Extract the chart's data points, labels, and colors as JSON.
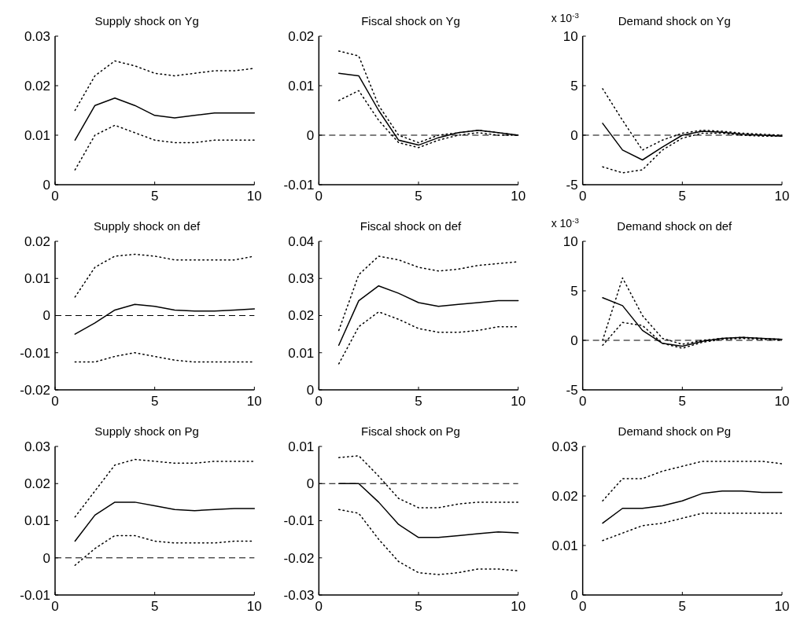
{
  "chart_data": [
    {
      "type": "line",
      "title": "Supply shock on Yg",
      "x": [
        1,
        2,
        3,
        4,
        5,
        6,
        7,
        8,
        9,
        10
      ],
      "xlim": [
        0,
        10
      ],
      "xticks": [
        0,
        5,
        10
      ],
      "ylim": [
        0,
        0.03
      ],
      "yticks": [
        0,
        0.01,
        0.02,
        0.03
      ],
      "series": [
        {
          "color": "#000000",
          "line_style": "solid",
          "values": [
            0.009,
            0.016,
            0.0175,
            0.016,
            0.014,
            0.0135,
            0.014,
            0.0145,
            0.0145,
            0.0145
          ]
        },
        {
          "color": "#000000",
          "line_style": "dotted",
          "values": [
            0.015,
            0.022,
            0.025,
            0.024,
            0.0225,
            0.022,
            0.0225,
            0.023,
            0.023,
            0.0235
          ]
        },
        {
          "color": "#000000",
          "line_style": "dotted",
          "values": [
            0.003,
            0.01,
            0.012,
            0.0105,
            0.009,
            0.0085,
            0.0085,
            0.009,
            0.009,
            0.009
          ]
        }
      ]
    },
    {
      "type": "line",
      "title": "Fiscal shock on Yg",
      "x": [
        1,
        2,
        3,
        4,
        5,
        6,
        7,
        8,
        9,
        10
      ],
      "xlim": [
        0,
        10
      ],
      "xticks": [
        0,
        5,
        10
      ],
      "ylim": [
        -0.01,
        0.02
      ],
      "yticks": [
        -0.01,
        0,
        0.01,
        0.02
      ],
      "ref_lines": [
        {
          "axis": "y",
          "value": 0,
          "line_style": "dashed"
        }
      ],
      "series": [
        {
          "color": "#000000",
          "line_style": "solid",
          "values": [
            0.0125,
            0.012,
            0.005,
            -0.001,
            -0.002,
            -0.0005,
            0.0005,
            0.001,
            0.0005,
            0
          ]
        },
        {
          "color": "#000000",
          "line_style": "dotted",
          "values": [
            0.017,
            0.016,
            0.006,
            0,
            -0.0015,
            0,
            0.0005,
            0.001,
            0.0005,
            0
          ]
        },
        {
          "color": "#000000",
          "line_style": "dotted",
          "values": [
            0.007,
            0.009,
            0.003,
            -0.0015,
            -0.0025,
            -0.001,
            0,
            0.0005,
            0,
            0
          ]
        }
      ]
    },
    {
      "type": "line",
      "title": "Demand shock on Yg",
      "annotations": [
        "x 10$^{-3}$"
      ],
      "x": [
        1,
        2,
        3,
        4,
        5,
        6,
        7,
        8,
        9,
        10
      ],
      "xlim": [
        0,
        10
      ],
      "xticks": [
        0,
        5,
        10
      ],
      "ylim": [
        -5,
        10
      ],
      "yticks": [
        -5,
        0,
        5,
        10
      ],
      "ref_lines": [
        {
          "axis": "y",
          "value": 0,
          "line_style": "dashed"
        }
      ],
      "series": [
        {
          "color": "#000000",
          "line_style": "solid",
          "values": [
            1.2,
            -1.5,
            -2.5,
            -1.2,
            0,
            0.4,
            0.3,
            0.1,
            0,
            -0.1
          ]
        },
        {
          "color": "#000000",
          "line_style": "dotted",
          "values": [
            4.7,
            1.5,
            -1.5,
            -0.5,
            0.2,
            0.5,
            0.4,
            0.2,
            0.1,
            0
          ]
        },
        {
          "color": "#000000",
          "line_style": "dotted",
          "values": [
            -3.2,
            -3.8,
            -3.5,
            -1.5,
            -0.3,
            0.2,
            0.2,
            0,
            -0.1,
            -0.1
          ]
        }
      ]
    },
    {
      "type": "line",
      "title": "Supply shock on def",
      "x": [
        1,
        2,
        3,
        4,
        5,
        6,
        7,
        8,
        9,
        10
      ],
      "xlim": [
        0,
        10
      ],
      "xticks": [
        0,
        5,
        10
      ],
      "ylim": [
        -0.02,
        0.02
      ],
      "yticks": [
        -0.02,
        -0.01,
        0,
        0.01,
        0.02
      ],
      "ref_lines": [
        {
          "axis": "y",
          "value": 0,
          "line_style": "dashed"
        }
      ],
      "series": [
        {
          "color": "#000000",
          "line_style": "solid",
          "values": [
            -0.005,
            -0.002,
            0.0015,
            0.003,
            0.0025,
            0.0015,
            0.0012,
            0.0012,
            0.0015,
            0.0018
          ]
        },
        {
          "color": "#000000",
          "line_style": "dotted",
          "values": [
            0.005,
            0.013,
            0.016,
            0.0165,
            0.016,
            0.015,
            0.015,
            0.015,
            0.015,
            0.016
          ]
        },
        {
          "color": "#000000",
          "line_style": "dotted",
          "values": [
            -0.0125,
            -0.0125,
            -0.011,
            -0.01,
            -0.011,
            -0.012,
            -0.0125,
            -0.0125,
            -0.0125,
            -0.0125
          ]
        }
      ]
    },
    {
      "type": "line",
      "title": "Fiscal shock on def",
      "x": [
        1,
        2,
        3,
        4,
        5,
        6,
        7,
        8,
        9,
        10
      ],
      "xlim": [
        0,
        10
      ],
      "xticks": [
        0,
        5,
        10
      ],
      "ylim": [
        0,
        0.04
      ],
      "yticks": [
        0,
        0.01,
        0.02,
        0.03,
        0.04
      ],
      "series": [
        {
          "color": "#000000",
          "line_style": "solid",
          "values": [
            0.012,
            0.024,
            0.028,
            0.026,
            0.0235,
            0.0225,
            0.023,
            0.0235,
            0.024,
            0.024
          ]
        },
        {
          "color": "#000000",
          "line_style": "dotted",
          "values": [
            0.016,
            0.031,
            0.036,
            0.035,
            0.033,
            0.032,
            0.0325,
            0.0335,
            0.034,
            0.0345
          ]
        },
        {
          "color": "#000000",
          "line_style": "dotted",
          "values": [
            0.007,
            0.017,
            0.021,
            0.019,
            0.0165,
            0.0155,
            0.0155,
            0.016,
            0.017,
            0.017
          ]
        }
      ]
    },
    {
      "type": "line",
      "title": "Demand shock on def",
      "annotations": [
        "x 10$^{-3}$"
      ],
      "x": [
        1,
        2,
        3,
        4,
        5,
        6,
        7,
        8,
        9,
        10
      ],
      "xlim": [
        0,
        10
      ],
      "xticks": [
        0,
        5,
        10
      ],
      "ylim": [
        -5,
        10
      ],
      "yticks": [
        -5,
        0,
        5,
        10
      ],
      "ref_lines": [
        {
          "axis": "y",
          "value": 0,
          "line_style": "dashed"
        }
      ],
      "series": [
        {
          "color": "#000000",
          "line_style": "solid",
          "values": [
            4.3,
            3.5,
            1,
            -0.3,
            -0.6,
            -0.1,
            0.2,
            0.3,
            0.2,
            0.1
          ]
        },
        {
          "color": "#000000",
          "line_style": "dotted",
          "values": [
            0,
            6.3,
            2.5,
            0.2,
            -0.4,
            0,
            0.2,
            0.3,
            0.2,
            0.1
          ]
        },
        {
          "color": "#000000",
          "line_style": "dotted",
          "values": [
            -0.5,
            1.8,
            1.5,
            -0.3,
            -0.8,
            -0.2,
            0.1,
            0.2,
            0.1,
            0
          ]
        }
      ]
    },
    {
      "type": "line",
      "title": "Supply shock on Pg",
      "x": [
        1,
        2,
        3,
        4,
        5,
        6,
        7,
        8,
        9,
        10
      ],
      "xlim": [
        0,
        10
      ],
      "xticks": [
        0,
        5,
        10
      ],
      "ylim": [
        -0.01,
        0.03
      ],
      "yticks": [
        -0.01,
        0,
        0.01,
        0.02,
        0.03
      ],
      "ref_lines": [
        {
          "axis": "y",
          "value": 0,
          "line_style": "dashed"
        }
      ],
      "series": [
        {
          "color": "#000000",
          "line_style": "solid",
          "values": [
            0.0045,
            0.0115,
            0.015,
            0.015,
            0.014,
            0.013,
            0.0127,
            0.013,
            0.0133,
            0.0133
          ]
        },
        {
          "color": "#000000",
          "line_style": "dotted",
          "values": [
            0.011,
            0.018,
            0.025,
            0.0265,
            0.026,
            0.0255,
            0.0255,
            0.026,
            0.026,
            0.026
          ]
        },
        {
          "color": "#000000",
          "line_style": "dotted",
          "values": [
            -0.002,
            0.0025,
            0.006,
            0.006,
            0.0045,
            0.004,
            0.004,
            0.004,
            0.0045,
            0.0045
          ]
        }
      ]
    },
    {
      "type": "line",
      "title": "Fiscal shock on Pg",
      "x": [
        1,
        2,
        3,
        4,
        5,
        6,
        7,
        8,
        9,
        10
      ],
      "xlim": [
        0,
        10
      ],
      "xticks": [
        0,
        5,
        10
      ],
      "ylim": [
        -0.03,
        0.01
      ],
      "yticks": [
        -0.03,
        -0.02,
        -0.01,
        0,
        0.01
      ],
      "ref_lines": [
        {
          "axis": "y",
          "value": 0,
          "line_style": "dashed"
        }
      ],
      "series": [
        {
          "color": "#000000",
          "line_style": "solid",
          "values": [
            0,
            0,
            -0.005,
            -0.011,
            -0.0145,
            -0.0145,
            -0.014,
            -0.0135,
            -0.013,
            -0.0133
          ]
        },
        {
          "color": "#000000",
          "line_style": "dotted",
          "values": [
            0.007,
            0.0075,
            0.002,
            -0.004,
            -0.0065,
            -0.0065,
            -0.0055,
            -0.005,
            -0.005,
            -0.005
          ]
        },
        {
          "color": "#000000",
          "line_style": "dotted",
          "values": [
            -0.007,
            -0.008,
            -0.015,
            -0.021,
            -0.024,
            -0.0245,
            -0.024,
            -0.023,
            -0.023,
            -0.0235
          ]
        }
      ]
    },
    {
      "type": "line",
      "title": "Demand shock on Pg",
      "x": [
        1,
        2,
        3,
        4,
        5,
        6,
        7,
        8,
        9,
        10
      ],
      "xlim": [
        0,
        10
      ],
      "xticks": [
        0,
        5,
        10
      ],
      "ylim": [
        0,
        0.03
      ],
      "yticks": [
        0,
        0.01,
        0.02,
        0.03
      ],
      "series": [
        {
          "color": "#000000",
          "line_style": "solid",
          "values": [
            0.0145,
            0.0175,
            0.0175,
            0.018,
            0.019,
            0.0205,
            0.021,
            0.021,
            0.0207,
            0.0207
          ]
        },
        {
          "color": "#000000",
          "line_style": "dotted",
          "values": [
            0.019,
            0.0235,
            0.0235,
            0.025,
            0.026,
            0.027,
            0.027,
            0.027,
            0.027,
            0.0265
          ]
        },
        {
          "color": "#000000",
          "line_style": "dotted",
          "values": [
            0.011,
            0.0125,
            0.014,
            0.0145,
            0.0155,
            0.0165,
            0.0165,
            0.0165,
            0.0165,
            0.0165
          ]
        }
      ]
    }
  ]
}
